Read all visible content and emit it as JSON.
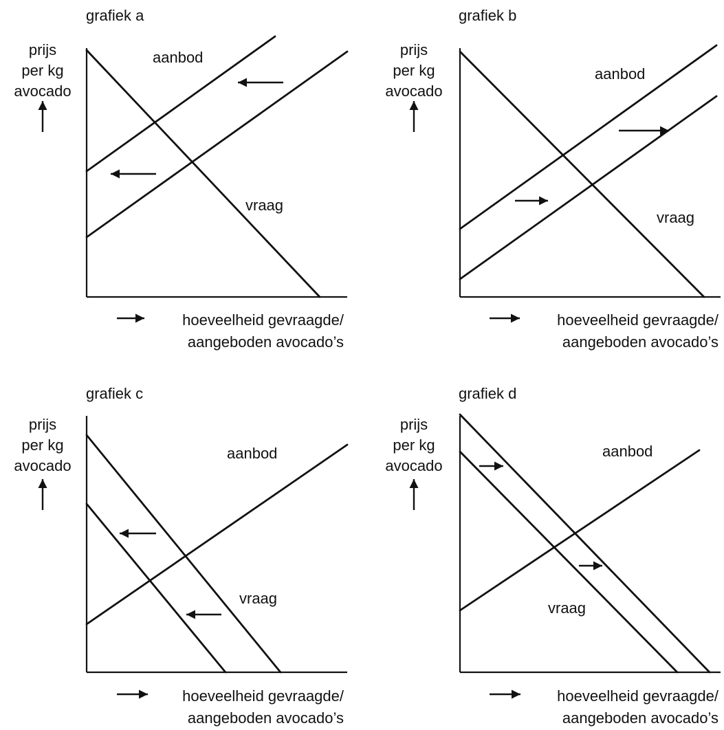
{
  "labels": {
    "y_axis": [
      "prijs",
      "per kg",
      "avocado"
    ],
    "x_axis": [
      "hoeveelheid gevraagde/",
      "aangeboden avocado’s"
    ],
    "supply": "aanbod",
    "demand": "vraag"
  },
  "panels": [
    {
      "id": "a",
      "title": "grafiek a",
      "shifted_curve": "supply",
      "shift_direction": "left"
    },
    {
      "id": "b",
      "title": "grafiek b",
      "shifted_curve": "supply",
      "shift_direction": "right"
    },
    {
      "id": "c",
      "title": "grafiek c",
      "shifted_curve": "demand",
      "shift_direction": "left"
    },
    {
      "id": "d",
      "title": "grafiek d",
      "shifted_curve": "demand",
      "shift_direction": "right"
    }
  ]
}
